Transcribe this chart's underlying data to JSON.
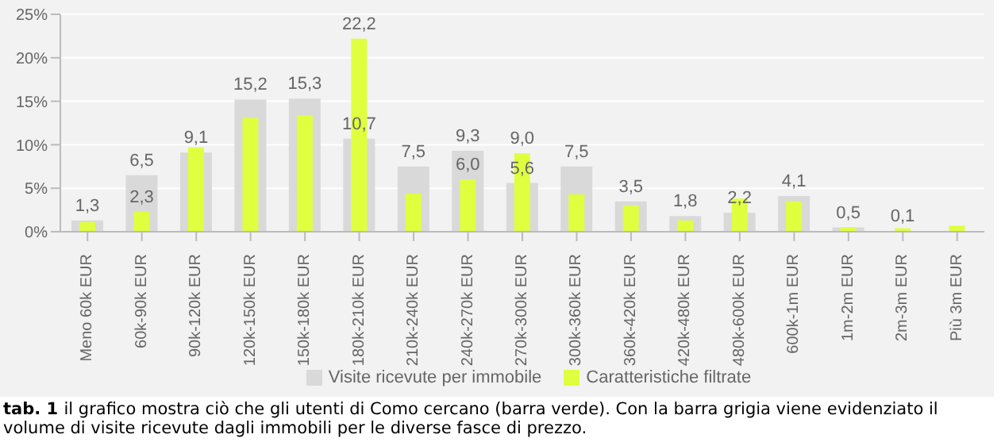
{
  "chart_data": {
    "type": "bar",
    "categories": [
      "Meno 60k EUR",
      "60k-90k EUR",
      "90k-120k EUR",
      "120k-150k EUR",
      "150k-180k EUR",
      "180k-210k EUR",
      "210k-240k EUR",
      "240k-270k EUR",
      "270k-300k EUR",
      "300k-360k EUR",
      "360k-420k EUR",
      "420k-480k EUR",
      "480k-600k EUR",
      "600k-1m EUR",
      "1m-2m EUR",
      "2m-3m EUR",
      "Più 3m EUR"
    ],
    "series": [
      {
        "name": "Visite ricevute per immobile",
        "color": "#d9d9d9",
        "values": [
          1.3,
          6.5,
          9.1,
          15.2,
          15.3,
          10.7,
          7.5,
          9.3,
          5.6,
          7.5,
          3.5,
          1.8,
          2.2,
          4.1,
          0.5,
          0.1,
          0
        ],
        "value_labels": [
          "1,3",
          "6,5",
          "9,1",
          "15,2",
          "15,3",
          "10,7",
          "7,5",
          "9,3",
          "5,6",
          "7,5",
          "3,5",
          "1,8",
          "2,2",
          "4,1",
          "0,5",
          "0,1",
          null
        ]
      },
      {
        "name": "Caratteristiche filtrate",
        "color": "#dfff3f",
        "values": [
          1.1,
          2.3,
          9.7,
          13.1,
          13.4,
          22.2,
          4.4,
          6.0,
          9.0,
          4.3,
          3.0,
          1.3,
          3.8,
          3.5,
          0.5,
          0.4,
          0.7
        ],
        "value_labels": [
          null,
          "2,3",
          null,
          null,
          null,
          "22,2",
          null,
          "6,0",
          "9,0",
          null,
          null,
          null,
          null,
          null,
          null,
          null,
          null
        ]
      }
    ],
    "ylim": [
      0,
      25
    ],
    "yticks": [
      {
        "value": 0,
        "label": "0%"
      },
      {
        "value": 5,
        "label": "5%"
      },
      {
        "value": 10,
        "label": "10%"
      },
      {
        "value": 15,
        "label": "15%"
      },
      {
        "value": 20,
        "label": "20%"
      },
      {
        "value": 25,
        "label": "25%"
      }
    ],
    "grid": "y",
    "legend": "bottom",
    "annotations": [
      "tab. 1",
      "il grafico mostra ciò che gli utenti di Como cercano (barra verde). Con la barra grigia viene evidenziato il volume di visite ricevute dagli immobili per le diverse fasce di prezzo."
    ]
  }
}
